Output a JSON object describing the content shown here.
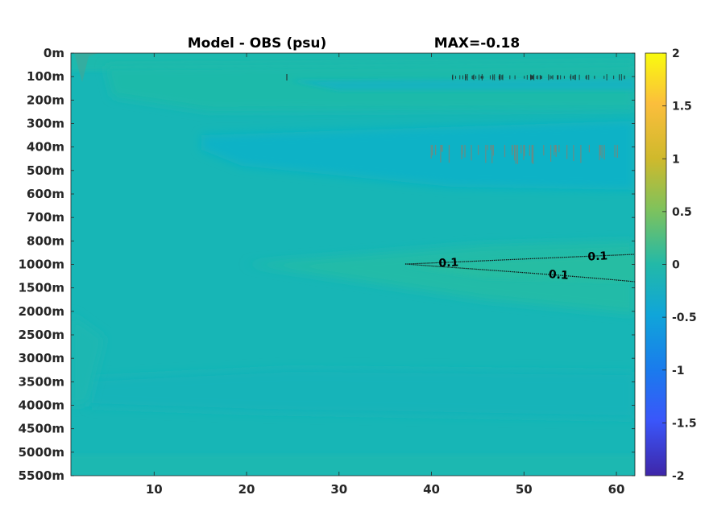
{
  "chart_data": {
    "type": "heatmap",
    "title": "Model - OBS (psu)",
    "max_label": "MAX=-0.18",
    "xlabel": "",
    "ylabel": "",
    "x_ticks": [
      "10",
      "20",
      "30",
      "40",
      "50",
      "60"
    ],
    "x_tick_values": [
      10,
      20,
      30,
      40,
      50,
      60
    ],
    "xlim": [
      1,
      62
    ],
    "y_ticks": [
      "0m",
      "100m",
      "200m",
      "300m",
      "400m",
      "500m",
      "600m",
      "700m",
      "800m",
      "1000m",
      "1500m",
      "2000m",
      "2500m",
      "3000m",
      "3500m",
      "4000m",
      "4500m",
      "5000m",
      "5500m"
    ],
    "colorbar": {
      "ticks": [
        "2",
        "1.5",
        "1",
        "0.5",
        "0",
        "-0.5",
        "-1",
        "-1.5",
        "-2"
      ],
      "range": [
        -2,
        2
      ],
      "colormap": "parula"
    },
    "contour_labels": [
      {
        "text": "0.1",
        "x": 42,
        "depth": "1000m"
      },
      {
        "text": "0.1",
        "x": 58,
        "depth": "1000m"
      },
      {
        "text": "0.1",
        "x": 54,
        "depth": "1500m"
      }
    ],
    "colors": {
      "background_field": "#16b5b7",
      "low_anomaly": "#0bb2c5",
      "high_anomaly": "#22bba8"
    }
  }
}
